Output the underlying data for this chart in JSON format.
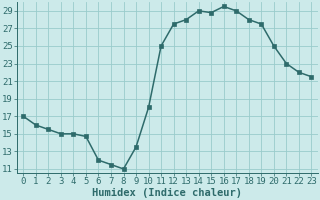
{
  "x": [
    0,
    1,
    2,
    3,
    4,
    5,
    6,
    7,
    8,
    9,
    10,
    11,
    12,
    13,
    14,
    15,
    16,
    17,
    18,
    19,
    20,
    21,
    22,
    23
  ],
  "y": [
    17,
    16,
    15.5,
    15,
    15,
    14.7,
    12,
    11.5,
    11,
    13.5,
    18,
    25,
    27.5,
    28,
    29,
    28.8,
    29.5,
    29,
    28,
    27.5,
    25,
    23,
    22,
    21.5
  ],
  "line_color": "#2e6b6b",
  "marker_color": "#2e6b6b",
  "bg_color": "#cceaea",
  "grid_color": "#99cccc",
  "xlabel": "Humidex (Indice chaleur)",
  "xlim": [
    -0.5,
    23.5
  ],
  "ylim": [
    10.5,
    30.0
  ],
  "yticks": [
    11,
    13,
    15,
    17,
    19,
    21,
    23,
    25,
    27,
    29
  ],
  "xticks": [
    0,
    1,
    2,
    3,
    4,
    5,
    6,
    7,
    8,
    9,
    10,
    11,
    12,
    13,
    14,
    15,
    16,
    17,
    18,
    19,
    20,
    21,
    22,
    23
  ],
  "axis_color": "#2e6b6b",
  "font_size": 6.5,
  "xlabel_font_size": 7.5,
  "lw": 1.1,
  "markersize": 2.8
}
